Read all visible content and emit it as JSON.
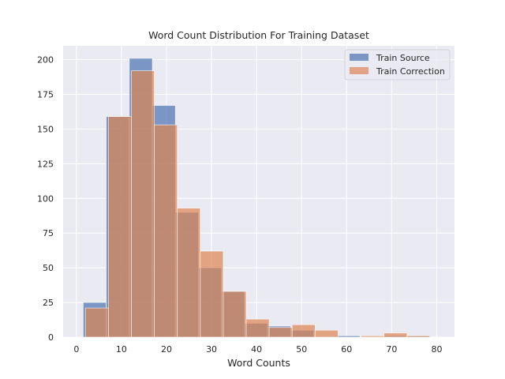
{
  "chart_data": {
    "type": "bar",
    "title": "Word Count Distribution For Training Dataset",
    "xlabel": "Word Counts",
    "ylabel": "",
    "xlim": [
      -2.95,
      83.95
    ],
    "ylim": [
      0,
      210
    ],
    "xticks": [
      0,
      10,
      20,
      30,
      40,
      50,
      60,
      70,
      80
    ],
    "yticks": [
      0,
      25,
      50,
      75,
      100,
      125,
      150,
      175,
      200
    ],
    "grid": true,
    "legend_position": "top-right",
    "series": [
      {
        "name": "Train Source",
        "color": "#4c72b0",
        "bins": [
          1.5,
          6.62,
          11.74,
          16.86,
          21.98,
          27.1,
          32.22,
          37.34,
          42.46,
          47.58,
          52.7,
          57.82,
          62.94,
          68.06,
          73.18,
          78.3,
          83.42
        ],
        "values": [
          25,
          159,
          201,
          167,
          90,
          50,
          33,
          10,
          8,
          5,
          0,
          1,
          0,
          1,
          1,
          0
        ]
      },
      {
        "name": "Train Correction",
        "color": "#dd8452",
        "bins": [
          2,
          7.1,
          12.2,
          17.3,
          22.4,
          27.5,
          32.6,
          37.7,
          42.8,
          47.9,
          53.0,
          58.1,
          63.2,
          68.3,
          73.4,
          78.5
        ],
        "values": [
          21,
          159,
          192,
          153,
          93,
          62,
          33,
          13,
          7,
          9,
          5,
          0,
          1,
          3,
          1
        ]
      }
    ]
  }
}
